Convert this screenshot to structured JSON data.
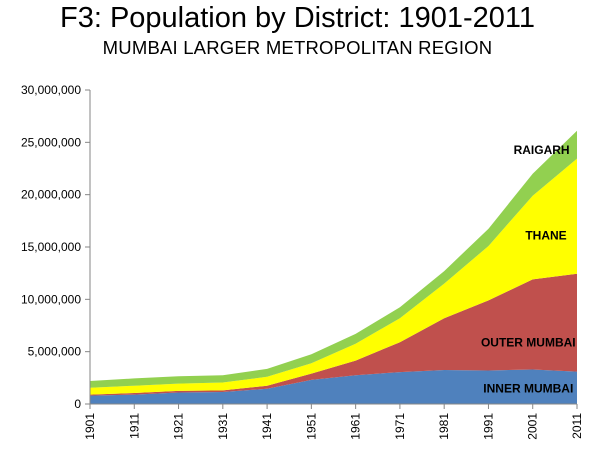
{
  "title": "F3: Population by District: 1901-2011",
  "subtitle": "MUMBAI LARGER METROPOLITAN REGION",
  "chart_data": {
    "type": "area",
    "stacked": true,
    "title": "F3: Population by District: 1901-2011",
    "subtitle": "MUMBAI LARGER METROPOLITAN REGION",
    "x": [
      "1901",
      "1911",
      "1921",
      "1931",
      "1941",
      "1951",
      "1961",
      "1971",
      "1981",
      "1991",
      "2001",
      "2011"
    ],
    "ylim": [
      0,
      30000000
    ],
    "yticks": [
      0,
      5000000,
      10000000,
      15000000,
      20000000,
      25000000,
      30000000
    ],
    "ytick_labels": [
      "0",
      "5,000,000",
      "10,000,000",
      "15,000,000",
      "20,000,000",
      "25,000,000",
      "30,000,000"
    ],
    "grid": false,
    "legend": "none (series labeled inside areas)",
    "series": [
      {
        "name": "INNER MUMBAI",
        "color": "#4f81bd",
        "values": [
          800000,
          900000,
          1100000,
          1150000,
          1450000,
          2300000,
          2750000,
          3050000,
          3250000,
          3200000,
          3300000,
          3100000
        ]
      },
      {
        "name": "OUTER MUMBAI",
        "color": "#c0504d",
        "values": [
          100000,
          150000,
          150000,
          150000,
          300000,
          600000,
          1400000,
          2850000,
          4950000,
          6700000,
          8600000,
          9350000
        ]
      },
      {
        "name": "THANE",
        "color": "#ffff00",
        "values": [
          650000,
          700000,
          700000,
          750000,
          850000,
          1000000,
          1600000,
          2300000,
          3300000,
          5200000,
          8000000,
          11000000
        ]
      },
      {
        "name": "RAIGARH",
        "color": "#92d050",
        "values": [
          650000,
          700000,
          700000,
          700000,
          750000,
          850000,
          950000,
          1050000,
          1200000,
          1650000,
          2100000,
          2650000
        ]
      }
    ]
  }
}
